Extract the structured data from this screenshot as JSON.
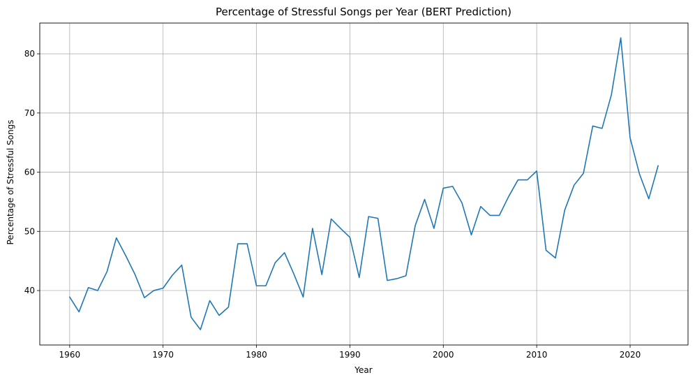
{
  "chart_data": {
    "type": "line",
    "title": "Percentage of Stressful Songs per Year (BERT Prediction)",
    "xlabel": "Year",
    "ylabel": "Percentage of Stressful Songs",
    "xlim": [
      1956.8,
      2026.2
    ],
    "ylim": [
      30.8,
      85.2
    ],
    "xticks": [
      1960,
      1970,
      1980,
      1990,
      2000,
      2010,
      2020
    ],
    "yticks": [
      40,
      50,
      60,
      70,
      80
    ],
    "xtick_labels": [
      "1960",
      "1970",
      "1980",
      "1990",
      "2000",
      "2010",
      "2020"
    ],
    "ytick_labels": [
      "40",
      "50",
      "60",
      "70",
      "80"
    ],
    "grid": true,
    "legend": "none",
    "series": [
      {
        "color": "#1f77b4",
        "x": [
          1960,
          1961,
          1962,
          1963,
          1964,
          1965,
          1966,
          1967,
          1968,
          1969,
          1970,
          1971,
          1972,
          1973,
          1974,
          1975,
          1976,
          1977,
          1978,
          1979,
          1980,
          1981,
          1982,
          1983,
          1984,
          1985,
          1986,
          1987,
          1988,
          1989,
          1990,
          1991,
          1992,
          1993,
          1994,
          1995,
          1996,
          1997,
          1998,
          1999,
          2000,
          2001,
          2002,
          2003,
          2004,
          2005,
          2006,
          2007,
          2008,
          2009,
          2010,
          2011,
          2012,
          2013,
          2014,
          2015,
          2016,
          2017,
          2018,
          2019,
          2020,
          2021,
          2022,
          2023
        ],
        "values": [
          38.9,
          36.4,
          40.5,
          40.0,
          43.2,
          48.9,
          45.9,
          42.7,
          38.8,
          40.0,
          40.4,
          42.6,
          44.3,
          35.5,
          33.4,
          38.3,
          35.8,
          37.2,
          47.9,
          47.9,
          40.8,
          40.8,
          44.7,
          46.4,
          42.8,
          38.9,
          50.5,
          42.7,
          52.1,
          50.5,
          49.0,
          42.2,
          52.5,
          52.2,
          41.7,
          42.0,
          42.5,
          51.0,
          55.4,
          50.5,
          57.3,
          57.6,
          54.8,
          49.4,
          54.2,
          52.7,
          52.7,
          55.9,
          58.7,
          58.7,
          60.2,
          46.8,
          45.5,
          53.6,
          57.8,
          59.8,
          67.8,
          67.4,
          73.1,
          82.7,
          65.8,
          59.7,
          55.5,
          61.1
        ]
      }
    ]
  }
}
